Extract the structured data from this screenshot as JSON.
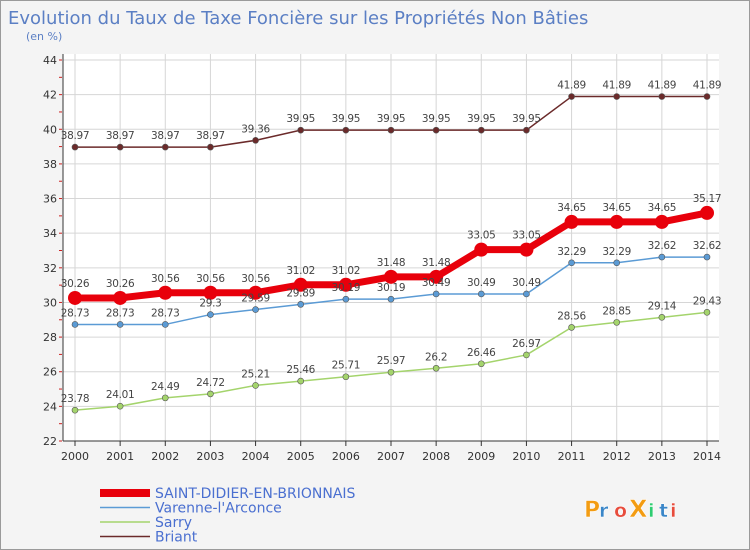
{
  "chart_data": {
    "type": "line",
    "title": "Evolution du Taux de Taxe Foncière sur les Propriétés Non Bâties",
    "subtitle": "(en %)",
    "xlabel": "",
    "ylabel": "",
    "ylim": [
      22,
      44
    ],
    "yticks": [
      22,
      24,
      26,
      28,
      30,
      32,
      34,
      36,
      38,
      40,
      42,
      44
    ],
    "grid": true,
    "legend_position": "bottom-left",
    "categories": [
      "2000",
      "2001",
      "2002",
      "2003",
      "2004",
      "2005",
      "2006",
      "2007",
      "2008",
      "2009",
      "2010",
      "2011",
      "2012",
      "2013",
      "2014"
    ],
    "series": [
      {
        "name": "SAINT-DIDIER-EN-BRIONNAIS",
        "color": "#e8000b",
        "values": [
          30.26,
          30.26,
          30.56,
          30.56,
          30.56,
          31.02,
          31.02,
          31.48,
          31.48,
          33.05,
          33.05,
          34.65,
          34.65,
          34.65,
          35.17
        ],
        "labels": [
          "30.26",
          "30.26",
          "30.56",
          "30.56",
          "30.56",
          "31.02",
          "31.02",
          "31.48",
          "31.48",
          "33.05",
          "33.05",
          "34.65",
          "34.65",
          "34.65",
          "35.17"
        ]
      },
      {
        "name": "Varenne-l'Arconce",
        "color": "#5b9bd5",
        "values": [
          28.73,
          28.73,
          28.73,
          29.3,
          29.59,
          29.89,
          30.19,
          30.19,
          30.49,
          30.49,
          30.49,
          32.29,
          32.29,
          32.62,
          32.62
        ],
        "labels": [
          "28.73",
          "28.73",
          "28.73",
          "29.3",
          "29.59",
          "29.89",
          "30.19",
          "30.19",
          "30.49",
          "30.49",
          "30.49",
          "32.29",
          "32.29",
          "32.62",
          "32.62"
        ]
      },
      {
        "name": "Sarry",
        "color": "#a4d46c",
        "values": [
          23.78,
          24.01,
          24.49,
          24.72,
          25.21,
          25.46,
          25.71,
          25.97,
          26.2,
          26.46,
          26.97,
          28.56,
          28.85,
          29.14,
          29.43
        ],
        "labels": [
          "23.78",
          "24.01",
          "24.49",
          "24.72",
          "25.21",
          "25.46",
          "25.71",
          "25.97",
          "26.2",
          "26.46",
          "26.97",
          "28.56",
          "28.85",
          "29.14",
          "29.43"
        ]
      },
      {
        "name": "Briant",
        "color": "#6b2a2a",
        "values": [
          38.97,
          38.97,
          38.97,
          38.97,
          39.36,
          39.95,
          39.95,
          39.95,
          39.95,
          39.95,
          39.95,
          41.89,
          41.89,
          41.89,
          41.89
        ],
        "labels": [
          "38.97",
          "38.97",
          "38.97",
          "38.97",
          "39.36",
          "39.95",
          "39.95",
          "39.95",
          "39.95",
          "39.95",
          "39.95",
          "41.89",
          "41.89",
          "41.89",
          "41.89"
        ]
      }
    ]
  },
  "brand": {
    "logo_text": "ProXiti",
    "letters": [
      "P",
      "r",
      "o",
      "X",
      "i",
      "t",
      "i"
    ],
    "letter_colors": [
      "#f39c12",
      "#3a86c8",
      "#e74c3c",
      "#f39c12",
      "#2ecc71",
      "#3a86c8",
      "#e74c3c"
    ]
  },
  "colors": {
    "title": "#5b7fc4",
    "axis": "#333333",
    "grid": "#d6d6d6",
    "legend_text": "#4a6fd0",
    "label_text": "#444444",
    "tick_mark": "#cc2222"
  }
}
